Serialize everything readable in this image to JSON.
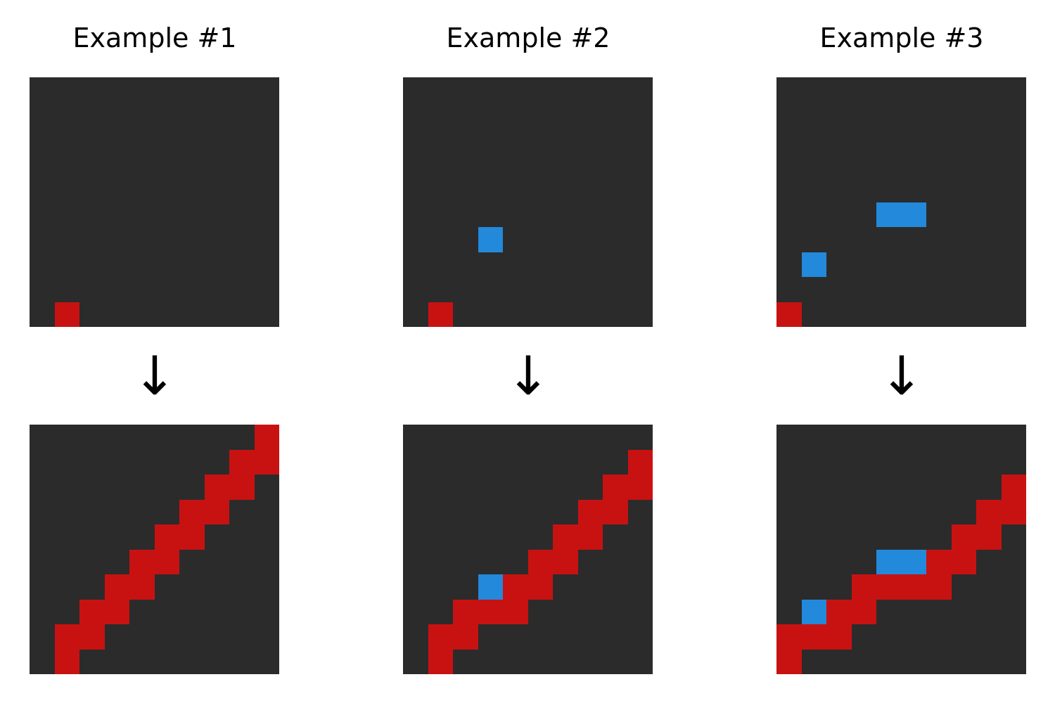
{
  "colors": {
    "background": "#2b2b2b",
    "red": "#c81212",
    "blue": "#2389da"
  },
  "arrow_glyph": "↓",
  "grid_size": 10,
  "examples": [
    {
      "title": "Example #1",
      "input": {
        "red": [
          [
            9,
            1
          ]
        ],
        "blue": []
      },
      "output": {
        "red": [
          [
            0,
            9
          ],
          [
            1,
            8
          ],
          [
            1,
            9
          ],
          [
            2,
            7
          ],
          [
            2,
            8
          ],
          [
            3,
            6
          ],
          [
            3,
            7
          ],
          [
            4,
            5
          ],
          [
            4,
            6
          ],
          [
            5,
            4
          ],
          [
            5,
            5
          ],
          [
            6,
            3
          ],
          [
            6,
            4
          ],
          [
            7,
            2
          ],
          [
            7,
            3
          ],
          [
            8,
            1
          ],
          [
            8,
            2
          ],
          [
            9,
            1
          ]
        ],
        "blue": []
      }
    },
    {
      "title": "Example #2",
      "input": {
        "red": [
          [
            9,
            1
          ]
        ],
        "blue": [
          [
            6,
            3
          ]
        ]
      },
      "output": {
        "red": [
          [
            1,
            9
          ],
          [
            2,
            8
          ],
          [
            2,
            9
          ],
          [
            3,
            7
          ],
          [
            3,
            8
          ],
          [
            4,
            6
          ],
          [
            4,
            7
          ],
          [
            5,
            5
          ],
          [
            5,
            6
          ],
          [
            6,
            4
          ],
          [
            6,
            5
          ],
          [
            7,
            2
          ],
          [
            7,
            3
          ],
          [
            7,
            4
          ],
          [
            8,
            1
          ],
          [
            8,
            2
          ],
          [
            9,
            1
          ]
        ],
        "blue": [
          [
            6,
            3
          ]
        ]
      }
    },
    {
      "title": "Example #3",
      "input": {
        "red": [
          [
            9,
            0
          ]
        ],
        "blue": [
          [
            5,
            4
          ],
          [
            5,
            5
          ],
          [
            7,
            1
          ]
        ]
      },
      "output": {
        "red": [
          [
            2,
            9
          ],
          [
            3,
            8
          ],
          [
            3,
            9
          ],
          [
            4,
            7
          ],
          [
            4,
            8
          ],
          [
            5,
            6
          ],
          [
            5,
            7
          ],
          [
            6,
            3
          ],
          [
            6,
            4
          ],
          [
            6,
            5
          ],
          [
            6,
            6
          ],
          [
            7,
            2
          ],
          [
            7,
            3
          ],
          [
            8,
            0
          ],
          [
            8,
            1
          ],
          [
            8,
            2
          ],
          [
            9,
            0
          ]
        ],
        "blue": [
          [
            5,
            4
          ],
          [
            5,
            5
          ],
          [
            7,
            1
          ]
        ]
      }
    }
  ]
}
